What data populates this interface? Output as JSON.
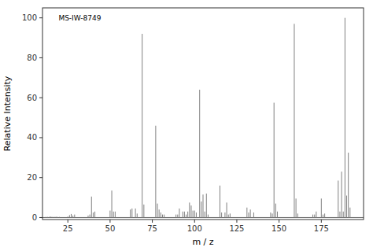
{
  "chart_data": {
    "type": "stem",
    "annotation": "MS-IW-8749",
    "xlabel": "m / z",
    "ylabel": "Relative Intensity",
    "xlim": [
      10,
      200
    ],
    "ylim": [
      -1,
      105
    ],
    "xticks": [
      25,
      50,
      75,
      100,
      125,
      150,
      175
    ],
    "yticks": [
      0,
      20,
      40,
      60,
      80,
      100
    ],
    "color": "#808080",
    "grid": false,
    "x": [
      12,
      13,
      14,
      15,
      16,
      17,
      18,
      19,
      20,
      25,
      26,
      27,
      28,
      29,
      37,
      38,
      39,
      40,
      41,
      50,
      51,
      52,
      53,
      62,
      63,
      65,
      66,
      69,
      70,
      77,
      78,
      79,
      80,
      81,
      82,
      89,
      90,
      91,
      93,
      94,
      95,
      96,
      97,
      98,
      99,
      100,
      101,
      103,
      104,
      105,
      106,
      107,
      108,
      115,
      116,
      118,
      119,
      120,
      121,
      131,
      132,
      133,
      135,
      145,
      146,
      147,
      148,
      149,
      159,
      160,
      161,
      170,
      171,
      172,
      175,
      176,
      177,
      185,
      186,
      187,
      188,
      189,
      190,
      191,
      192
    ],
    "values": [
      0.3,
      0.3,
      0.4,
      0.5,
      0.3,
      0.3,
      0.4,
      0.3,
      0.3,
      0.5,
      1.2,
      1.8,
      1.0,
      1.5,
      1.0,
      1.5,
      10.5,
      2.5,
      3.0,
      3.5,
      13.5,
      3.0,
      3.0,
      4.0,
      4.5,
      4.5,
      2.0,
      92.0,
      6.5,
      46.0,
      7.0,
      4.0,
      2.5,
      1.5,
      1.5,
      1.5,
      1.5,
      4.5,
      3.0,
      3.0,
      1.5,
      3.0,
      7.5,
      6.0,
      3.5,
      3.5,
      2.5,
      64.0,
      8.0,
      11.5,
      3.0,
      12.0,
      1.5,
      16.0,
      2.5,
      2.5,
      7.5,
      1.5,
      2.0,
      5.0,
      2.5,
      4.0,
      2.5,
      2.5,
      2.0,
      57.5,
      7.0,
      3.0,
      97.0,
      9.5,
      2.0,
      1.5,
      1.5,
      3.0,
      9.5,
      1.5,
      2.0,
      18.5,
      3.0,
      23.0,
      3.0,
      100.0,
      11.0,
      32.5,
      5.0
    ]
  }
}
